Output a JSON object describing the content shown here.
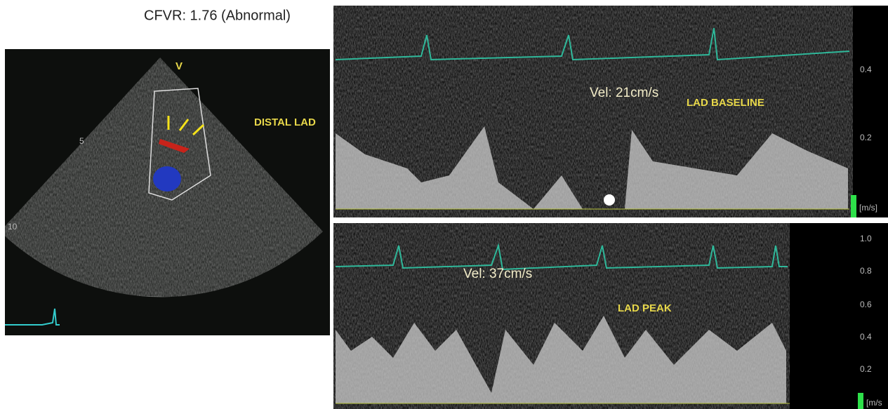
{
  "header": {
    "title": "CFVR: 1.76 (Abnormal)"
  },
  "echo": {
    "label": "DISTAL LAD",
    "marker": "V",
    "depths": [
      "5",
      "10"
    ]
  },
  "baseline": {
    "velocity": "Vel: 21cm/s",
    "label": "LAD BASELINE",
    "scale": [
      "0.4",
      "0.2"
    ],
    "unit": "[m/s]"
  },
  "peak": {
    "velocity": "Vel: 37cm/s",
    "label": "LAD PEAK",
    "scale": [
      "1.0",
      "0.8",
      "0.6",
      "0.4",
      "0.2"
    ],
    "unit": "[m/s"
  }
}
